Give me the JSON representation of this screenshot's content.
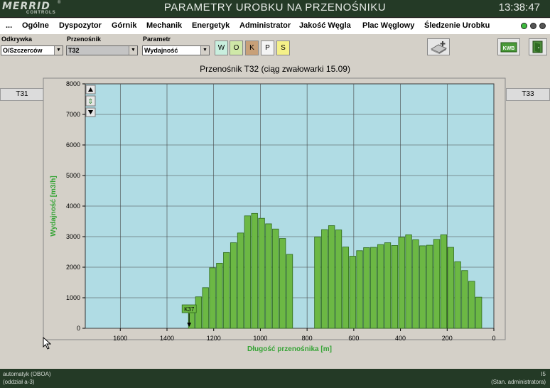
{
  "header": {
    "logo_text": "MERRID",
    "logo_sub": "CONTROLS",
    "logo_reg": "®",
    "title": "PARAMETRY UROBKU NA PRZENOŚNIKU",
    "clock": "13:38:47"
  },
  "menu": {
    "items": [
      "...",
      "Ogólne",
      "Dyspozytor",
      "Górnik",
      "Mechanik",
      "Energetyk",
      "Administrator",
      "Jakość Węgla",
      "Plac Węglowy",
      "Śledzenie Urobku"
    ]
  },
  "toolbar": {
    "odkrywka": {
      "label": "Odkrywka",
      "value": "O/Szczerców"
    },
    "przenosnik": {
      "label": "Przenośnik",
      "value": "T32"
    },
    "parametr": {
      "label": "Parametr",
      "value": "Wydajność"
    },
    "modes": [
      {
        "label": "W",
        "color": "#c8eede"
      },
      {
        "label": "O",
        "color": "#cfe8a8"
      },
      {
        "label": "K",
        "color": "#c8a078"
      },
      {
        "label": "P",
        "color": "#f4f4f4"
      },
      {
        "label": "S",
        "color": "#f4f088"
      }
    ],
    "kwb_label": "KWB"
  },
  "chart_title": "Przenośnik T32 (ciąg zwałowarki 15.09)",
  "nav": {
    "prev": "T31",
    "next": "T33"
  },
  "chart_data": {
    "type": "bar",
    "title": "Przenośnik T32 (ciąg zwałowarki 15.09)",
    "xlabel": "Długość przenośnika [m]",
    "ylabel": "Wydajność [m3/h]",
    "x_reversed": true,
    "xlim": [
      1750,
      0
    ],
    "ylim": [
      0,
      8000
    ],
    "xticks": [
      1600,
      1400,
      1200,
      1000,
      800,
      600,
      400,
      200,
      0
    ],
    "yticks": [
      0,
      1000,
      2000,
      3000,
      4000,
      5000,
      6000,
      7000,
      8000
    ],
    "grid": true,
    "bar_width": 26,
    "marker": {
      "label": "K37",
      "x": 1305
    },
    "x": [
      1295,
      1265,
      1235,
      1205,
      1175,
      1145,
      1115,
      1085,
      1055,
      1025,
      995,
      965,
      935,
      905,
      875,
      845,
      815,
      755,
      725,
      695,
      665,
      635,
      605,
      575,
      545,
      515,
      485,
      455,
      425,
      395,
      365,
      335,
      305,
      275,
      245,
      215,
      185,
      155,
      125,
      95,
      65,
      35
    ],
    "values": [
      550,
      1030,
      1330,
      1980,
      2130,
      2480,
      2800,
      3120,
      3680,
      3760,
      3600,
      3420,
      3250,
      2940,
      2420,
      0,
      0,
      2990,
      3230,
      3360,
      3220,
      2660,
      2360,
      2540,
      2640,
      2650,
      2740,
      2800,
      2710,
      2980,
      3060,
      2900,
      2700,
      2720,
      2910,
      3060,
      2650,
      2180,
      1890,
      1540,
      1020,
      0
    ]
  },
  "status": {
    "left1": "automatyk (OBOA)",
    "left2": "(oddział a-3)",
    "right1": "I5",
    "right2": "(Stan. administratora)"
  },
  "colors": {
    "bar": "#6cb844",
    "bar_edge": "#2e6a1a",
    "plot_bg": "#b0dce4",
    "axis_label": "#36a436"
  }
}
